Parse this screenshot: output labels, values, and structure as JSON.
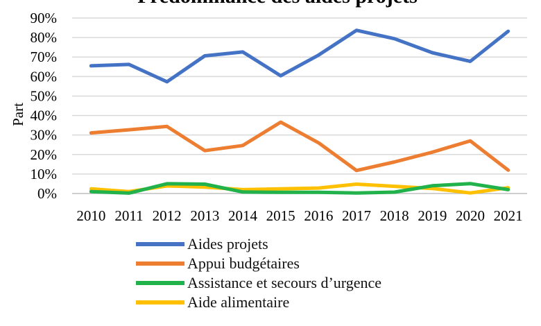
{
  "chart_data": {
    "type": "line",
    "title": "Prédominance des aides projets",
    "xlabel": "",
    "ylabel": "Part",
    "x": [
      "2010",
      "2011",
      "2012",
      "2013",
      "2014",
      "2015",
      "2016",
      "2017",
      "2018",
      "2019",
      "2020",
      "2021"
    ],
    "ylim": [
      0,
      90
    ],
    "yticks": [
      "0%",
      "10%",
      "20%",
      "30%",
      "40%",
      "50%",
      "60%",
      "70%",
      "80%",
      "90%"
    ],
    "grid": true,
    "legend": "bottom",
    "series": [
      {
        "name": "Aides projets",
        "color": "#4472c4",
        "values": [
          65.5,
          66.2,
          57.3,
          70.6,
          72.6,
          60.4,
          71.0,
          83.7,
          79.4,
          72.2,
          67.8,
          83.2
        ]
      },
      {
        "name": "Appui budgétaires",
        "color": "#ed7d31",
        "values": [
          31.1,
          32.7,
          34.4,
          22.0,
          24.6,
          36.6,
          26.0,
          11.8,
          16.2,
          21.2,
          27.0,
          12.0
        ]
      },
      {
        "name": "Assistance et secours d’urgence",
        "color": "#21b24b",
        "values": [
          1.0,
          0.2,
          5.0,
          4.8,
          0.8,
          0.6,
          0.6,
          0.3,
          0.7,
          4.0,
          5.1,
          2.0
        ]
      },
      {
        "name": "Aide alimentaire",
        "color": "#ffc000",
        "values": [
          2.4,
          1.0,
          3.9,
          3.3,
          2.0,
          2.4,
          2.8,
          4.8,
          3.7,
          2.6,
          0.3,
          3.0
        ]
      }
    ]
  }
}
